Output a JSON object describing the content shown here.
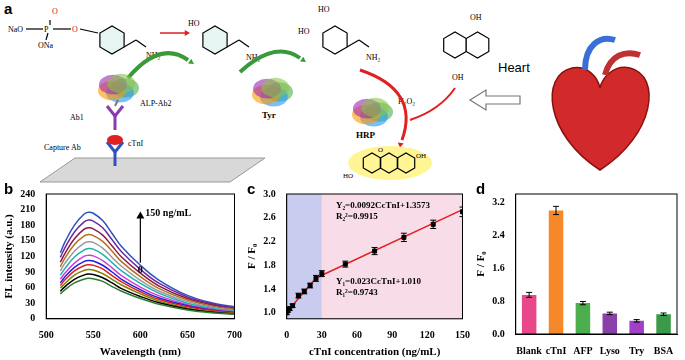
{
  "panel_a": {
    "label": "a",
    "substrate": [
      "NaO",
      "P",
      "O",
      "O",
      "ONa",
      "NH₂"
    ],
    "tyramine": [
      "HO",
      "NH₂"
    ],
    "dopamine": [
      "HO",
      "HO",
      "NH₂"
    ],
    "naphthalenediol": [
      "OH",
      "OH"
    ],
    "product": [
      "HO",
      "O",
      "OH"
    ],
    "enzymes": [
      "ALP-Ab2",
      "Tyr",
      "HRP"
    ],
    "immuno": [
      "Ab1",
      "Capture Ab",
      "cTnI"
    ],
    "reagent": "H₂O₂",
    "heart": "Heart"
  },
  "chart_data": [
    {
      "panel_label": "b",
      "type": "line",
      "x_label": "Wavelength (nm)",
      "y_label": "FL intensity (a.u.)",
      "x": [
        515,
        520,
        530,
        540,
        545,
        550,
        560,
        570,
        580,
        600,
        620,
        650,
        680,
        700
      ],
      "series": [
        {
          "color": "#2e7d32",
          "values": [
            48,
            56,
            69,
            76,
            78,
            77,
            72,
            62,
            53,
            39,
            28,
            17,
            11,
            9
          ]
        },
        {
          "color": "#000000",
          "values": [
            53,
            62,
            76,
            84,
            86,
            85,
            79,
            69,
            58,
            43,
            31,
            19,
            12,
            9
          ]
        },
        {
          "color": "#808000",
          "values": [
            59,
            68,
            84,
            93,
            95,
            94,
            87,
            76,
            65,
            48,
            34,
            21,
            13,
            10
          ]
        },
        {
          "color": "#e02020",
          "values": [
            64,
            75,
            92,
            102,
            104,
            103,
            96,
            83,
            71,
            52,
            37,
            23,
            15,
            11
          ]
        },
        {
          "color": "#2020e0",
          "values": [
            69,
            81,
            99,
            110,
            112,
            111,
            103,
            90,
            76,
            56,
            40,
            25,
            16,
            12
          ]
        },
        {
          "color": "#d040d0",
          "values": [
            76,
            88,
            107,
            120,
            122,
            121,
            112,
            98,
            83,
            61,
            44,
            27,
            17,
            13
          ]
        },
        {
          "color": "#20b0b0",
          "values": [
            84,
            97,
            119,
            132,
            135,
            134,
            124,
            108,
            92,
            68,
            49,
            30,
            19,
            15
          ]
        },
        {
          "color": "#9a9a9a",
          "values": [
            92,
            107,
            130,
            145,
            148,
            147,
            136,
            118,
            101,
            74,
            53,
            33,
            21,
            16
          ]
        },
        {
          "color": "#b07020",
          "values": [
            100,
            117,
            143,
            159,
            162,
            160,
            149,
            130,
            110,
            81,
            58,
            36,
            23,
            18
          ]
        },
        {
          "color": "#8b1a4a",
          "values": [
            109,
            126,
            154,
            172,
            175,
            173,
            161,
            140,
            119,
            88,
            63,
            39,
            25,
            19
          ]
        },
        {
          "color": "#6a2ca0",
          "values": [
            118,
            137,
            167,
            186,
            190,
            188,
            175,
            152,
            129,
            95,
            68,
            42,
            27,
            21
          ]
        },
        {
          "color": "#3050c0",
          "values": [
            127,
            148,
            180,
            201,
            205,
            203,
            189,
            164,
            139,
            103,
            74,
            45,
            29,
            23
          ]
        }
      ],
      "xlim": [
        500,
        700
      ],
      "xticks": [
        500,
        550,
        600,
        650,
        700
      ],
      "ylim": [
        0,
        240
      ],
      "yticks": [
        0,
        30,
        60,
        90,
        120,
        150,
        180,
        210,
        240
      ],
      "grid": false,
      "annotations": [
        "150 ng/mL",
        "0"
      ]
    },
    {
      "panel_label": "c",
      "type": "scatter",
      "x_label": "cTnI concentration (ng/mL)",
      "y_label": "F / F₀",
      "x": [
        0,
        1,
        2.5,
        5,
        10,
        15,
        20,
        25,
        30,
        50,
        75,
        100,
        125,
        150
      ],
      "series": [
        {
          "color": "#000000",
          "marker": "square",
          "values": [
            1.0,
            1.04,
            1.07,
            1.12,
            1.29,
            1.36,
            1.46,
            1.58,
            1.66,
            1.82,
            2.04,
            2.27,
            2.49,
            2.7
          ],
          "errors": [
            0.03,
            0.03,
            0.03,
            0.03,
            0.04,
            0.04,
            0.04,
            0.05,
            0.05,
            0.05,
            0.06,
            0.07,
            0.07,
            0.08
          ]
        }
      ],
      "fits": [
        {
          "equation": "Y₁=0.023CcTnI+1.010",
          "r2": "R₁²=0.9743",
          "color": "#e02020",
          "x": [
            0,
            25
          ],
          "values": [
            1.01,
            1.585
          ]
        },
        {
          "equation": "Y₂=0.0092CcTnI+1.3573",
          "r2": "R₂²=0.9915",
          "color": "#e02020",
          "x": [
            25,
            150
          ],
          "values": [
            1.587,
            2.737
          ]
        }
      ],
      "regions": [
        {
          "x": [
            0,
            30
          ],
          "color": "#c9cbef"
        },
        {
          "x": [
            30,
            150
          ],
          "color": "#f8dde9"
        }
      ],
      "xlim": [
        0,
        150
      ],
      "xticks": [
        0,
        30,
        60,
        90,
        120,
        150
      ],
      "ylim": [
        0.9,
        3.0
      ],
      "yticks": [
        {
          "value": 1.0,
          "label": "1.0"
        },
        1.4,
        1.8,
        2.2,
        2.6,
        {
          "value": 3.0,
          "label": "3.0"
        }
      ],
      "grid": false
    },
    {
      "panel_label": "d",
      "type": "bar",
      "y_label": "F / F₀",
      "categories": [
        "Blank",
        "cTnI",
        "AFP",
        "Lyso",
        "Try",
        "BSA"
      ],
      "values": [
        0.95,
        3.0,
        0.75,
        0.5,
        0.32,
        0.48
      ],
      "errors": [
        0.06,
        0.1,
        0.04,
        0.03,
        0.03,
        0.03
      ],
      "colors": [
        "#e8488a",
        "#f5892a",
        "#4cae4c",
        "#8b3fa8",
        "#a040c8",
        "#3a9a4a"
      ],
      "ylim": [
        0,
        3.4
      ],
      "yticks": [
        {
          "value": 0,
          "label": "0.0"
        },
        0.8,
        1.6,
        2.4,
        3.2
      ],
      "grid": false
    }
  ]
}
